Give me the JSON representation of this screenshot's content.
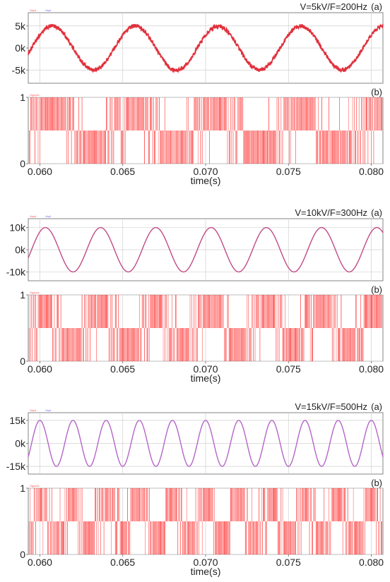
{
  "colors": {
    "voltage_red": "#e0303c",
    "voltage_purple": "#b565c8",
    "pulse_red": "#ff0a0a",
    "grid": "#d0d0d0",
    "axis": "#666666"
  },
  "chart_data": [
    {
      "type": "line",
      "panel": "a",
      "tag": "(a)",
      "title": "V=5kV/F=200Hz",
      "legend": [
        "Vapd",
        "Vapf"
      ],
      "xlabel": "",
      "ylabel": "",
      "xlim": [
        0.0593,
        0.0807
      ],
      "ylim": [
        -8,
        8
      ],
      "yticks": [
        5,
        0,
        -5
      ],
      "ytick_labels": [
        "5k",
        "0k",
        "-5k"
      ],
      "series": [
        {
          "amplitude_kV": 5,
          "frequency_Hz": 200,
          "color": "#e0303c"
        }
      ]
    },
    {
      "type": "line",
      "panel": "b",
      "tag": "(b)",
      "legend": [
        "Ggcpdv"
      ],
      "xlabel": "time(s)",
      "xlim": [
        0.0593,
        0.0807
      ],
      "ylim": [
        0,
        1
      ],
      "yticks": [
        1,
        0
      ],
      "ytick_labels": [
        "1",
        "0"
      ],
      "xticks": [
        0.06,
        0.065,
        0.07,
        0.075,
        0.08
      ],
      "xtick_labels": [
        "0.060",
        "0.065",
        "0.070",
        "0.075",
        "0.080"
      ],
      "pwm_reference_Hz": 200
    },
    {
      "type": "line",
      "panel": "a",
      "tag": "(a)",
      "title": "V=10kV/F=300Hz",
      "legend": [
        "Vapd",
        "Vapf"
      ],
      "xlabel": "",
      "ylabel": "",
      "xlim": [
        0.0593,
        0.0807
      ],
      "ylim": [
        -14,
        14
      ],
      "yticks": [
        10,
        0,
        -10
      ],
      "ytick_labels": [
        "10k",
        "0k",
        "-10k"
      ],
      "series": [
        {
          "amplitude_kV": 10,
          "frequency_Hz": 300,
          "color": "#c24a86"
        }
      ]
    },
    {
      "type": "line",
      "panel": "b",
      "tag": "(b)",
      "legend": [
        "Ggcpdv"
      ],
      "xlabel": "time(s)",
      "xlim": [
        0.0593,
        0.0807
      ],
      "ylim": [
        0,
        1
      ],
      "yticks": [
        1,
        0
      ],
      "ytick_labels": [
        "1",
        "0"
      ],
      "xticks": [
        0.06,
        0.065,
        0.07,
        0.075,
        0.08
      ],
      "xtick_labels": [
        "0.060",
        "0.065",
        "0.070",
        "0.075",
        "0.080"
      ],
      "pwm_reference_Hz": 300
    },
    {
      "type": "line",
      "panel": "a",
      "tag": "(a)",
      "title": "V=15kV/F=500Hz",
      "legend": [
        "Vapd",
        "Vapf"
      ],
      "xlabel": "",
      "ylabel": "",
      "xlim": [
        0.0593,
        0.0807
      ],
      "ylim": [
        -20,
        20
      ],
      "yticks": [
        15,
        0,
        -15
      ],
      "ytick_labels": [
        "15k",
        "0k",
        "-15k"
      ],
      "series": [
        {
          "amplitude_kV": 15,
          "frequency_Hz": 500,
          "color": "#b565c8"
        }
      ]
    },
    {
      "type": "line",
      "panel": "b",
      "tag": "(b)",
      "legend": [
        "Ggcpdv"
      ],
      "xlabel": "time(s)",
      "xlim": [
        0.0593,
        0.0807
      ],
      "ylim": [
        0,
        1
      ],
      "yticks": [
        1,
        0
      ],
      "ytick_labels": [
        "1",
        "0"
      ],
      "xticks": [
        0.06,
        0.065,
        0.07,
        0.075,
        0.08
      ],
      "xtick_labels": [
        "0.060",
        "0.065",
        "0.070",
        "0.075",
        "0.080"
      ],
      "pwm_reference_Hz": 500
    }
  ]
}
